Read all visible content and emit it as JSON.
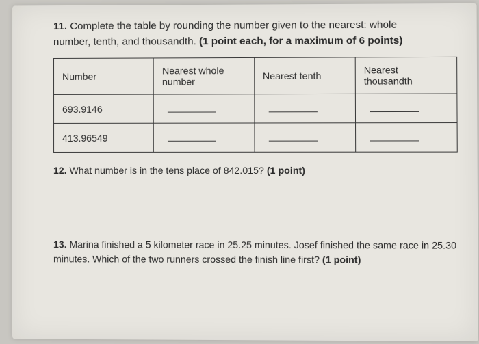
{
  "q11": {
    "number": "11.",
    "text_line1": "Complete the table by rounding the number given to the nearest: whole",
    "text_line2": "number, tenth, and thousandth.",
    "points": "(1 point each, for a maximum of 6 points)"
  },
  "table": {
    "headers": {
      "number": "Number",
      "whole": "Nearest whole number",
      "tenth": "Nearest tenth",
      "thousandth": "Nearest thousandth"
    },
    "rows": [
      {
        "number": "693.9146"
      },
      {
        "number": "413.96549"
      }
    ],
    "border_color": "#3a3a3a",
    "text_color": "#2a2a2a",
    "cell_fontsize": 14
  },
  "q12": {
    "number": "12.",
    "text": "What number is in the tens place of 842.015?",
    "points": "(1 point)"
  },
  "q13": {
    "number": "13.",
    "text": "Marina finished a 5 kilometer race in 25.25 minutes. Josef finished the same race in 25.30 minutes. Which of the two runners crossed the finish line first?",
    "points": "(1 point)"
  },
  "page_style": {
    "background_color": "#e8e6e0",
    "outer_background": "#c8c6c1",
    "text_color": "#2a2a2a",
    "font_family": "Arial, sans-serif"
  }
}
